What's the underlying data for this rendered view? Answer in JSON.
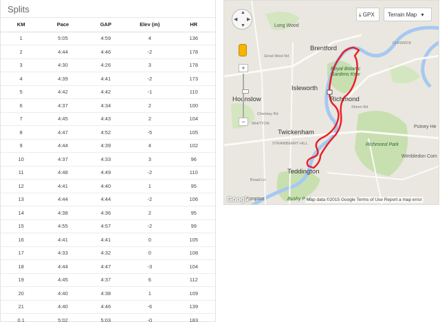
{
  "splits": {
    "title": "Splits",
    "columns": [
      "KM",
      "Pace",
      "GAP",
      "Elev (m)",
      "HR"
    ],
    "rows": [
      [
        "1",
        "5:05",
        "4:59",
        "4",
        "136"
      ],
      [
        "2",
        "4:44",
        "4:46",
        "-2",
        "178"
      ],
      [
        "3",
        "4:30",
        "4:26",
        "3",
        "178"
      ],
      [
        "4",
        "4:39",
        "4:41",
        "-2",
        "173"
      ],
      [
        "5",
        "4:42",
        "4:42",
        "-1",
        "110"
      ],
      [
        "6",
        "4:37",
        "4:34",
        "2",
        "100"
      ],
      [
        "7",
        "4:45",
        "4:43",
        "2",
        "104"
      ],
      [
        "8",
        "4:47",
        "4:52",
        "-5",
        "105"
      ],
      [
        "9",
        "4:44",
        "4:39",
        "4",
        "102"
      ],
      [
        "10",
        "4:37",
        "4:33",
        "3",
        "96"
      ],
      [
        "11",
        "4:48",
        "4:49",
        "-2",
        "110"
      ],
      [
        "12",
        "4:41",
        "4:40",
        "1",
        "95"
      ],
      [
        "13",
        "4:44",
        "4:44",
        "-2",
        "106"
      ],
      [
        "14",
        "4:38",
        "4:36",
        "2",
        "95"
      ],
      [
        "15",
        "4:55",
        "4:57",
        "-2",
        "99"
      ],
      [
        "16",
        "4:41",
        "4:41",
        "0",
        "105"
      ],
      [
        "17",
        "4:33",
        "4:32",
        "0",
        "108"
      ],
      [
        "18",
        "4:44",
        "4:47",
        "-3",
        "104"
      ],
      [
        "19",
        "4:45",
        "4:37",
        "6",
        "112"
      ],
      [
        "20",
        "4:40",
        "4:38",
        "1",
        "109"
      ],
      [
        "21",
        "4:40",
        "4:46",
        "-6",
        "139"
      ],
      [
        "0.1",
        "5:02",
        "5:03",
        "-0",
        "183"
      ]
    ]
  },
  "map": {
    "gpx_label": "GPX",
    "terrain_label": "Terrain Map",
    "google_logo": "Google",
    "attribution": "Map data ©2015 Google     Terms of Use     Report a map error",
    "places": {
      "brentford": "Brentford",
      "isleworth": "Isleworth",
      "hounslow": "Hounslow",
      "richmond": "Richmond",
      "twickenham": "Twickenham",
      "teddington": "Teddington",
      "hampton": "Hampton",
      "long_wood": "Long Wood",
      "whitton": "WHITTON",
      "strawberry_hill": "STRAWBERRY HILL",
      "chiswick": "CHISWICK",
      "kew_gardens": "Royal Botanic Gardens Kew",
      "richmond_park": "Richmond Park",
      "bushy_park": "Bushy Park",
      "wimbledon": "Wimbledon Com",
      "putney": "Putney He",
      "great_west_rd": "Great West Rd",
      "chertsey_rd": "Chertsey Rd",
      "sheen_rd": "Sheen Rd",
      "broad_ln": "Broad Ln"
    },
    "colors": {
      "route": "#e8202a",
      "water": "#a6c8f2",
      "park": "#c8dfb0",
      "land": "#e9e7df"
    }
  }
}
